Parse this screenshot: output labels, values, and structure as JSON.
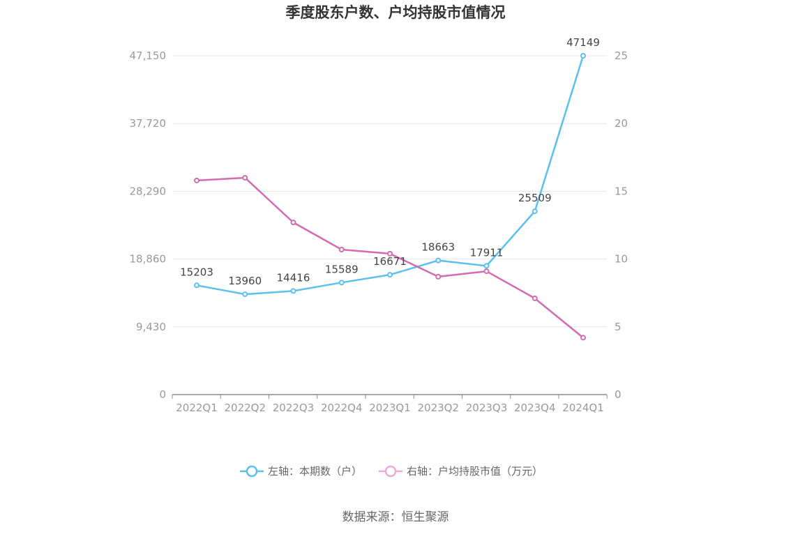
{
  "chart_data": {
    "type": "line",
    "title": "季度股东户数、户均持股市值情况",
    "categories": [
      "2022Q1",
      "2022Q2",
      "2022Q3",
      "2022Q4",
      "2023Q1",
      "2023Q2",
      "2023Q3",
      "2023Q4",
      "2024Q1"
    ],
    "left_axis": {
      "ticks": [
        "0",
        "9,430",
        "18,860",
        "28,290",
        "37,720",
        "47,150"
      ],
      "ylim": [
        0,
        47150
      ]
    },
    "right_axis": {
      "ticks": [
        "0",
        "5",
        "10",
        "15",
        "20",
        "25"
      ],
      "ylim": [
        0,
        25
      ]
    },
    "series": [
      {
        "name": "左轴：本期数（户）",
        "axis": "left",
        "color": "#5bc0f0",
        "values": [
          15203,
          13960,
          14416,
          15589,
          16671,
          18663,
          17911,
          25509,
          47149
        ],
        "labels": [
          "15203",
          "13960",
          "14416",
          "15589",
          "16671",
          "18663",
          "17911",
          "25509",
          "47149"
        ]
      },
      {
        "name": "右轴：户均持股市值（万元）",
        "axis": "right",
        "color": "#d36bb0",
        "legend_color": "#f0a8d4",
        "values": [
          15.8,
          16.0,
          12.7,
          10.7,
          10.4,
          8.7,
          9.1,
          7.1,
          4.2
        ]
      }
    ],
    "grid": true,
    "legend_position": "bottom-center"
  },
  "source": "数据来源：恒生聚源"
}
